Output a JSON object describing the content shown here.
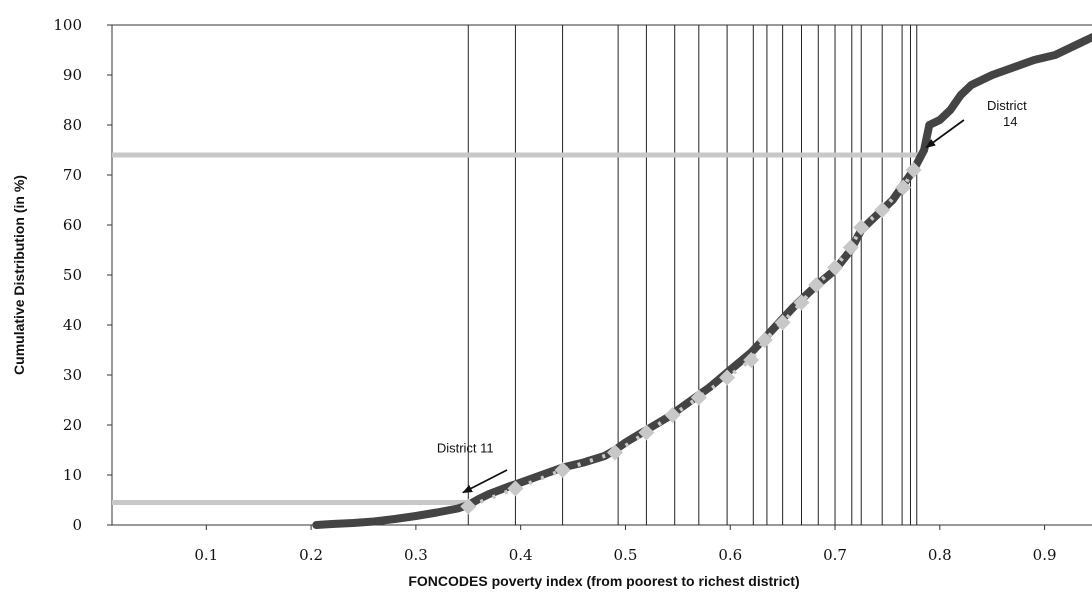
{
  "chart_data": {
    "type": "line",
    "xlabel": "FONCODES poverty index (from poorest to richest district)",
    "ylabel": "Cumulative Distribution (in %)",
    "xlim": [
      0.01,
      0.95
    ],
    "ylim": [
      0,
      100
    ],
    "x_ticks": [
      "0.1",
      "0.2",
      "0.3",
      "0.4",
      "0.5",
      "0.6",
      "0.7",
      "0.8",
      "0.9"
    ],
    "y_ticks": [
      "0",
      "10",
      "20",
      "30",
      "40",
      "50",
      "60",
      "70",
      "80",
      "90",
      "100"
    ],
    "grid": false,
    "series": [
      {
        "color": "#444444",
        "x": [
          0.205,
          0.22,
          0.24,
          0.26,
          0.28,
          0.3,
          0.32,
          0.34,
          0.35,
          0.36,
          0.37,
          0.38,
          0.39,
          0.4,
          0.42,
          0.44,
          0.46,
          0.48,
          0.49,
          0.5,
          0.52,
          0.54,
          0.56,
          0.58,
          0.6,
          0.62,
          0.64,
          0.66,
          0.68,
          0.7,
          0.715,
          0.725,
          0.74,
          0.755,
          0.765,
          0.775,
          0.785,
          0.79,
          0.8,
          0.81,
          0.82,
          0.83,
          0.85,
          0.87,
          0.89,
          0.91,
          0.92,
          0.94,
          0.95
        ],
        "y": [
          0,
          0.2,
          0.4,
          0.7,
          1.2,
          1.8,
          2.5,
          3.3,
          4.0,
          5.2,
          6.2,
          7.0,
          7.8,
          8.5,
          10.0,
          11.5,
          12.5,
          13.8,
          15.0,
          16.5,
          19.0,
          21.5,
          24.5,
          27.5,
          31.0,
          34.5,
          39.0,
          43.5,
          47.5,
          51.0,
          55.0,
          59.0,
          62.0,
          65.0,
          68.0,
          71.0,
          75.0,
          80.0,
          81.0,
          83.0,
          86.0,
          88.0,
          90.0,
          91.5,
          93.0,
          94.0,
          95.0,
          97.0,
          98.0
        ]
      },
      {
        "color": "#c8c8c8",
        "marker": "diamond",
        "x": [
          0.35,
          0.395,
          0.44,
          0.49,
          0.52,
          0.545,
          0.57,
          0.597,
          0.62,
          0.633,
          0.65,
          0.668,
          0.682,
          0.7,
          0.715,
          0.725,
          0.745,
          0.765,
          0.775
        ],
        "y": [
          3.7,
          7.3,
          11.0,
          14.5,
          18.5,
          22.0,
          25.5,
          29.5,
          33.0,
          37.0,
          40.5,
          44.5,
          48.0,
          51.5,
          55.5,
          59.5,
          63.0,
          67.5,
          71.0
        ]
      }
    ],
    "vertical_lines_x": [
      0.35,
      0.395,
      0.44,
      0.493,
      0.52,
      0.547,
      0.57,
      0.597,
      0.622,
      0.635,
      0.65,
      0.668,
      0.684,
      0.7,
      0.716,
      0.725,
      0.745,
      0.764,
      0.772,
      0.778
    ],
    "reference_lines": [
      {
        "y": 74,
        "x_from": 0.01,
        "x_to": 0.78,
        "color": "#c8c8c8"
      },
      {
        "y": 4.5,
        "x_from": 0.01,
        "x_to": 0.35,
        "color": "#c8c8c8"
      }
    ],
    "annotations": [
      {
        "lines": [
          "District 11"
        ],
        "text_x": 0.32,
        "text_y": 14.5,
        "arrow_from": [
          0.387,
          11.0
        ],
        "arrow_to": [
          0.345,
          6.5
        ]
      },
      {
        "lines": [
          "District",
          "14"
        ],
        "text_x": 0.845,
        "text_y": 83.0,
        "arrow_from": [
          0.823,
          81.0
        ],
        "arrow_to": [
          0.787,
          75.5
        ]
      }
    ]
  }
}
